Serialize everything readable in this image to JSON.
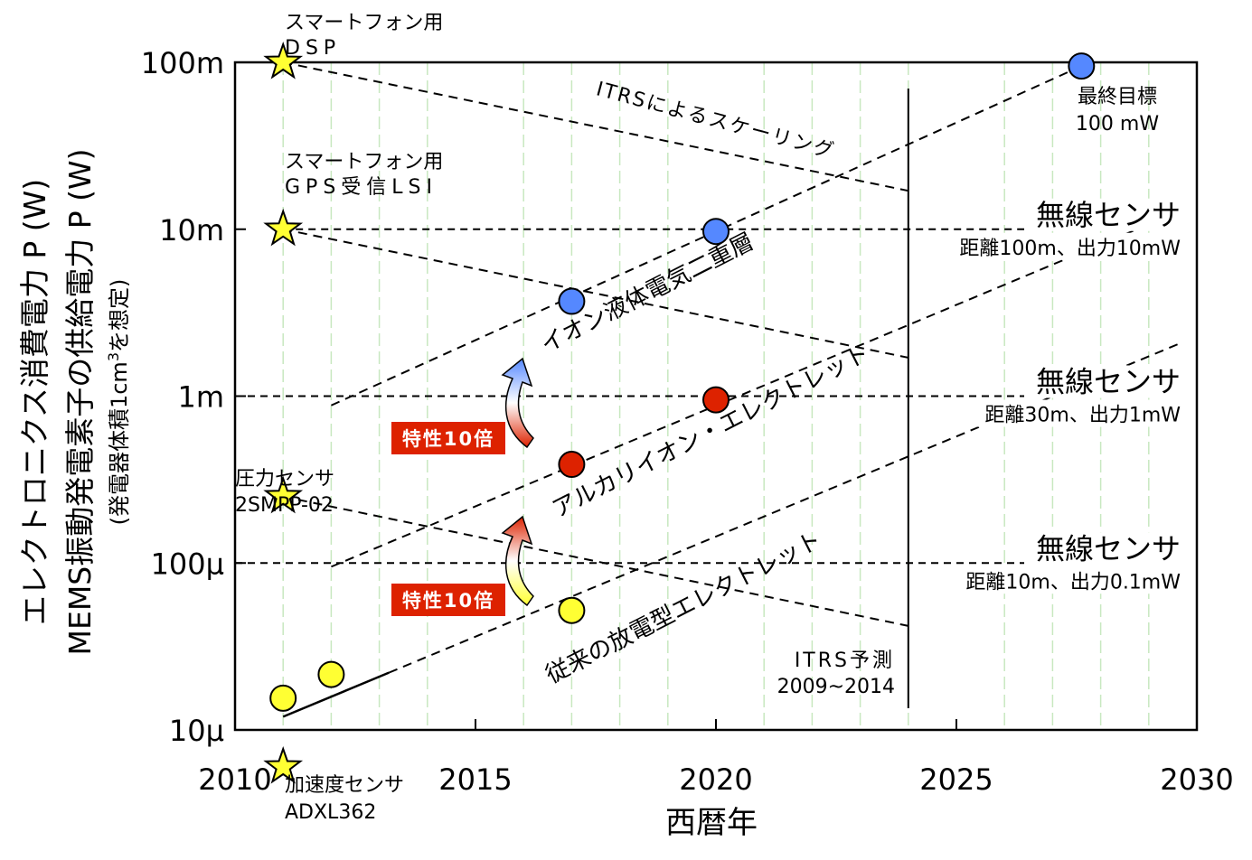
{
  "chart_data": {
    "type": "scatter",
    "title": "",
    "xlabel": "西暦年",
    "ylabel": "エレクトロニクス消費電力 P (W)",
    "ylabel2": "MEMS振動発電素子の供給電力 P (W)",
    "ylabel3_prefix": "(発電器体積1cm",
    "ylabel3_sup": "3",
    "ylabel3_suffix": "を想定)",
    "xlim": [
      2010,
      2030
    ],
    "ylim_log10": [
      -5,
      -1
    ],
    "x_ticks": [
      {
        "value": 2010,
        "label": "2010"
      },
      {
        "value": 2015,
        "label": "2015"
      },
      {
        "value": 2020,
        "label": "2020"
      },
      {
        "value": 2025,
        "label": "2025"
      },
      {
        "value": 2030,
        "label": "2030"
      }
    ],
    "y_ticks": [
      {
        "value": 1e-05,
        "label": "10μ"
      },
      {
        "value": 0.0001,
        "label": "100μ"
      },
      {
        "value": 0.001,
        "label": "1m"
      },
      {
        "value": 0.01,
        "label": "10m"
      },
      {
        "value": 0.1,
        "label": "100m"
      }
    ],
    "grid": "vertical-year-lines",
    "series": [
      {
        "name": "従来の放電型エレクトレット",
        "color": "#ffff33",
        "points": [
          [
            2011,
            1.55e-05
          ],
          [
            2012,
            2.15e-05
          ],
          [
            2017,
            5.2e-05
          ]
        ],
        "trend": [
          [
            2011,
            1.2e-05
          ],
          [
            2029.7,
            0.0021
          ]
        ]
      },
      {
        "name": "アルカリイオン・エレクトレット",
        "color": "#dd2200",
        "points": [
          [
            2017,
            0.00039
          ],
          [
            2020,
            0.00095
          ]
        ],
        "trend": [
          [
            2012,
            9.5e-05
          ],
          [
            2029.7,
            0.013
          ]
        ]
      },
      {
        "name": "イオン液体電気二重層",
        "color": "#5588ff",
        "points": [
          [
            2017,
            0.0037
          ],
          [
            2020,
            0.0097
          ],
          [
            2027.6,
            0.095
          ]
        ],
        "trend": [
          [
            2012,
            0.00088
          ],
          [
            2027.6,
            0.095
          ]
        ]
      }
    ],
    "stars": [
      {
        "x": 2011,
        "y": 0.1,
        "label1": "スマートフォン用",
        "label2": "DSP"
      },
      {
        "x": 2011,
        "y": 0.01,
        "label1": "スマートフォン用",
        "label2": "GPS受信LSI"
      },
      {
        "x": 2011,
        "y": 0.00025,
        "label1": "圧力センサ",
        "label2": "2SMPP-02"
      },
      {
        "x": 2011,
        "y": 6e-06,
        "label1": "加速度センサ",
        "label2": "ADXL362"
      }
    ],
    "itrs_lines": [
      [
        [
          2011,
          0.1
        ],
        [
          2024,
          0.017
        ]
      ],
      [
        [
          2011,
          0.01
        ],
        [
          2024,
          0.0017
        ]
      ],
      [
        [
          2011,
          0.00025
        ],
        [
          2024,
          4.2e-05
        ]
      ]
    ],
    "hlines": [
      {
        "y": 0.01,
        "x_from": 2011,
        "x_to": 2029.7
      },
      {
        "y": 0.001,
        "x_from": 2010,
        "x_to": 2029.7
      },
      {
        "y": 0.0001,
        "x_from": 2010,
        "x_to": 2029.7
      }
    ],
    "vline_year": 2024,
    "sensor_labels": [
      {
        "y": 0.01,
        "title": "無線センサ",
        "detail": "距離100m、出力10mW"
      },
      {
        "y": 0.001,
        "title": "無線センサ",
        "detail": "距離30m、出力1mW"
      },
      {
        "y": 0.0001,
        "title": "無線センサ",
        "detail": "距離10m、出力0.1mW"
      }
    ],
    "annotations": {
      "itrs_scaling": "ITRSによるスケーリング",
      "itrs_forecast_1": "ITRS予測",
      "itrs_forecast_2": "2009~2014",
      "goal_1": "最終目標",
      "goal_2": "100 mW",
      "tenfold_1": "特性10倍",
      "tenfold_2": "特性10倍",
      "tenfold_color": "#dd2200",
      "arrow_top": "#5588ff",
      "arrow_mid": "#dd2200",
      "arrow_bottom": "#ffff33"
    }
  }
}
